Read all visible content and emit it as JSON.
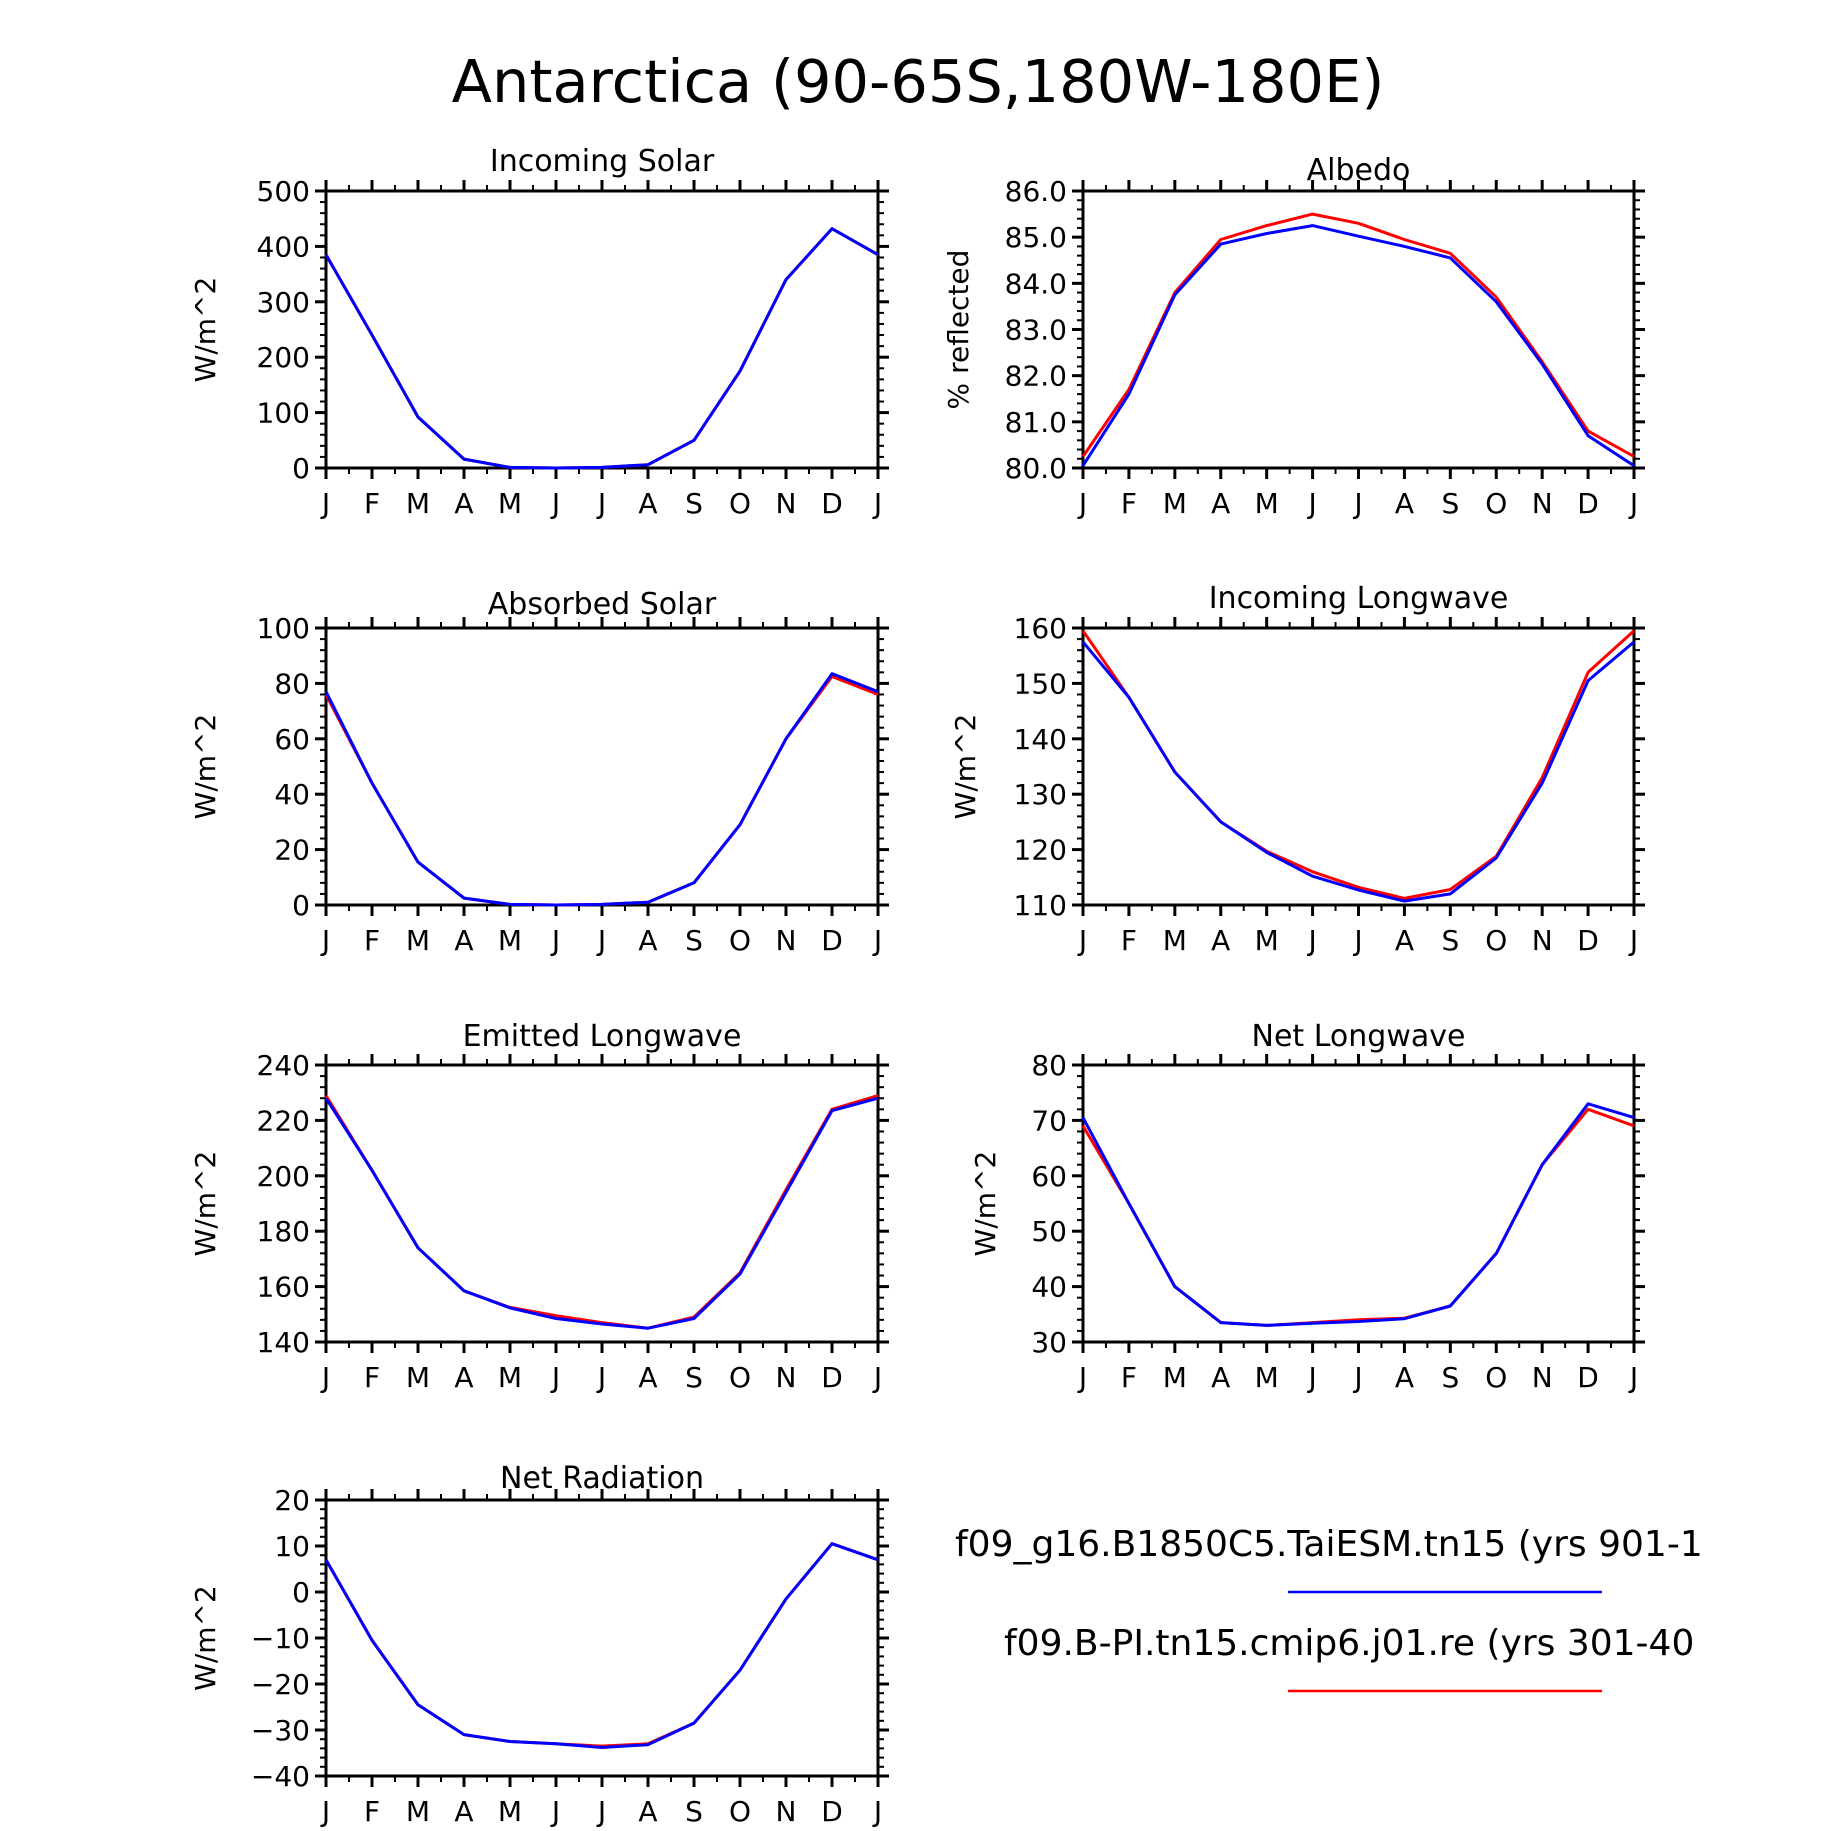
{
  "title": "Antarctica (90-65S,180W-180E)",
  "months": [
    "J",
    "F",
    "M",
    "A",
    "M",
    "J",
    "J",
    "A",
    "S",
    "O",
    "N",
    "D",
    "J"
  ],
  "legend": {
    "entries": [
      {
        "label": "f09_g16.B1850C5.TaiESM.tn15 (yrs 901-1",
        "color": "#0000ff"
      },
      {
        "label": "f09.B-PI.tn15.cmip6.j01.re (yrs 301-40",
        "color": "#ff0000"
      }
    ]
  },
  "chart_data": [
    {
      "type": "line",
      "title": "Incoming Solar",
      "ylabel": "W/m^2",
      "ylim": [
        0,
        500
      ],
      "yticks": [
        "0",
        "100",
        "200",
        "300",
        "400",
        "500"
      ],
      "x": [
        "J",
        "F",
        "M",
        "A",
        "M",
        "J",
        "J",
        "A",
        "S",
        "O",
        "N",
        "D",
        "J"
      ],
      "series": [
        {
          "color": "#ff0000",
          "values": [
            385,
            240,
            92,
            16,
            1,
            0,
            1,
            6,
            50,
            175,
            340,
            432,
            385
          ]
        },
        {
          "color": "#0000ff",
          "values": [
            385,
            240,
            92,
            16,
            1,
            0,
            1,
            6,
            50,
            175,
            340,
            432,
            385
          ]
        }
      ]
    },
    {
      "type": "line",
      "title": "Albedo",
      "ylabel": "% reflected",
      "ylim": [
        80,
        86
      ],
      "yticks": [
        "80.0",
        "81.0",
        "82.0",
        "83.0",
        "84.0",
        "85.0",
        "86.0"
      ],
      "x": [
        "J",
        "F",
        "M",
        "A",
        "M",
        "J",
        "J",
        "A",
        "S",
        "O",
        "N",
        "D",
        "J"
      ],
      "series": [
        {
          "color": "#ff0000",
          "values": [
            80.25,
            81.7,
            83.8,
            84.95,
            85.25,
            85.5,
            85.3,
            84.95,
            84.65,
            83.7,
            82.3,
            80.8,
            80.25
          ]
        },
        {
          "color": "#0000ff",
          "values": [
            80.05,
            81.6,
            83.75,
            84.85,
            85.08,
            85.25,
            85.02,
            84.8,
            84.55,
            83.6,
            82.25,
            80.7,
            80.05
          ]
        }
      ]
    },
    {
      "type": "line",
      "title": "Absorbed Solar",
      "ylabel": "W/m^2",
      "ylim": [
        0,
        100
      ],
      "yticks": [
        "0",
        "20",
        "40",
        "60",
        "80",
        "100"
      ],
      "x": [
        "J",
        "F",
        "M",
        "A",
        "M",
        "J",
        "J",
        "A",
        "S",
        "O",
        "N",
        "D",
        "J"
      ],
      "series": [
        {
          "color": "#ff0000",
          "values": [
            76,
            44,
            15.5,
            2.5,
            0.2,
            0,
            0.2,
            1,
            8,
            29,
            60,
            82.5,
            76
          ]
        },
        {
          "color": "#0000ff",
          "values": [
            77,
            44,
            15.5,
            2.5,
            0.2,
            0,
            0.2,
            1,
            8,
            29,
            60,
            83.5,
            77
          ]
        }
      ]
    },
    {
      "type": "line",
      "title": "Incoming Longwave",
      "ylabel": "W/m^2",
      "ylim": [
        110,
        160
      ],
      "yticks": [
        "110",
        "120",
        "130",
        "140",
        "150",
        "160"
      ],
      "x": [
        "J",
        "F",
        "M",
        "A",
        "M",
        "J",
        "J",
        "A",
        "S",
        "O",
        "N",
        "D",
        "J"
      ],
      "series": [
        {
          "color": "#ff0000",
          "values": [
            159.5,
            147.5,
            134,
            125,
            119.7,
            116,
            113.2,
            111.2,
            112.8,
            118.8,
            133,
            152,
            159.5
          ]
        },
        {
          "color": "#0000ff",
          "values": [
            157.5,
            147.5,
            134,
            125,
            119.5,
            115.2,
            112.7,
            110.7,
            112,
            118.5,
            132,
            150.5,
            157.5
          ]
        }
      ]
    },
    {
      "type": "line",
      "title": "Emitted Longwave",
      "ylabel": "W/m^2",
      "ylim": [
        140,
        240
      ],
      "yticks": [
        "140",
        "160",
        "180",
        "200",
        "220",
        "240"
      ],
      "x": [
        "J",
        "F",
        "M",
        "A",
        "M",
        "J",
        "J",
        "A",
        "S",
        "O",
        "N",
        "D",
        "J"
      ],
      "series": [
        {
          "color": "#ff0000",
          "values": [
            229,
            202,
            174,
            158.5,
            152.5,
            149.5,
            147,
            145,
            149,
            165,
            195,
            224,
            229
          ]
        },
        {
          "color": "#0000ff",
          "values": [
            228,
            202,
            174,
            158.5,
            152.3,
            148.5,
            146.5,
            145,
            148.5,
            164.5,
            194,
            223.5,
            228
          ]
        }
      ]
    },
    {
      "type": "line",
      "title": "Net Longwave",
      "ylabel": "W/m^2",
      "ylim": [
        30,
        80
      ],
      "yticks": [
        "30",
        "40",
        "50",
        "60",
        "70",
        "80"
      ],
      "x": [
        "J",
        "F",
        "M",
        "A",
        "M",
        "J",
        "J",
        "A",
        "S",
        "O",
        "N",
        "D",
        "J"
      ],
      "series": [
        {
          "color": "#ff0000",
          "values": [
            69,
            55,
            40,
            33.5,
            33,
            33.5,
            34,
            34.3,
            36.5,
            46,
            62,
            72,
            69
          ]
        },
        {
          "color": "#0000ff",
          "values": [
            70.5,
            55,
            40,
            33.5,
            33,
            33.4,
            33.7,
            34.2,
            36.5,
            46,
            62,
            73,
            70.5
          ]
        }
      ]
    },
    {
      "type": "line",
      "title": "Net Radiation",
      "ylabel": "W/m^2",
      "ylim": [
        -40,
        20
      ],
      "yticks": [
        "-40",
        "-30",
        "-20",
        "-10",
        "0",
        "10",
        "20"
      ],
      "x": [
        "J",
        "F",
        "M",
        "A",
        "M",
        "J",
        "J",
        "A",
        "S",
        "O",
        "N",
        "D",
        "J"
      ],
      "series": [
        {
          "color": "#ff0000",
          "values": [
            7,
            -10.5,
            -24.5,
            -31,
            -32.5,
            -33,
            -33.5,
            -33,
            -28.5,
            -17,
            -1.5,
            10.5,
            7
          ]
        },
        {
          "color": "#0000ff",
          "values": [
            7,
            -10.5,
            -24.5,
            -31,
            -32.5,
            -33,
            -33.8,
            -33.2,
            -28.5,
            -17,
            -1.5,
            10.5,
            7
          ]
        }
      ]
    }
  ]
}
